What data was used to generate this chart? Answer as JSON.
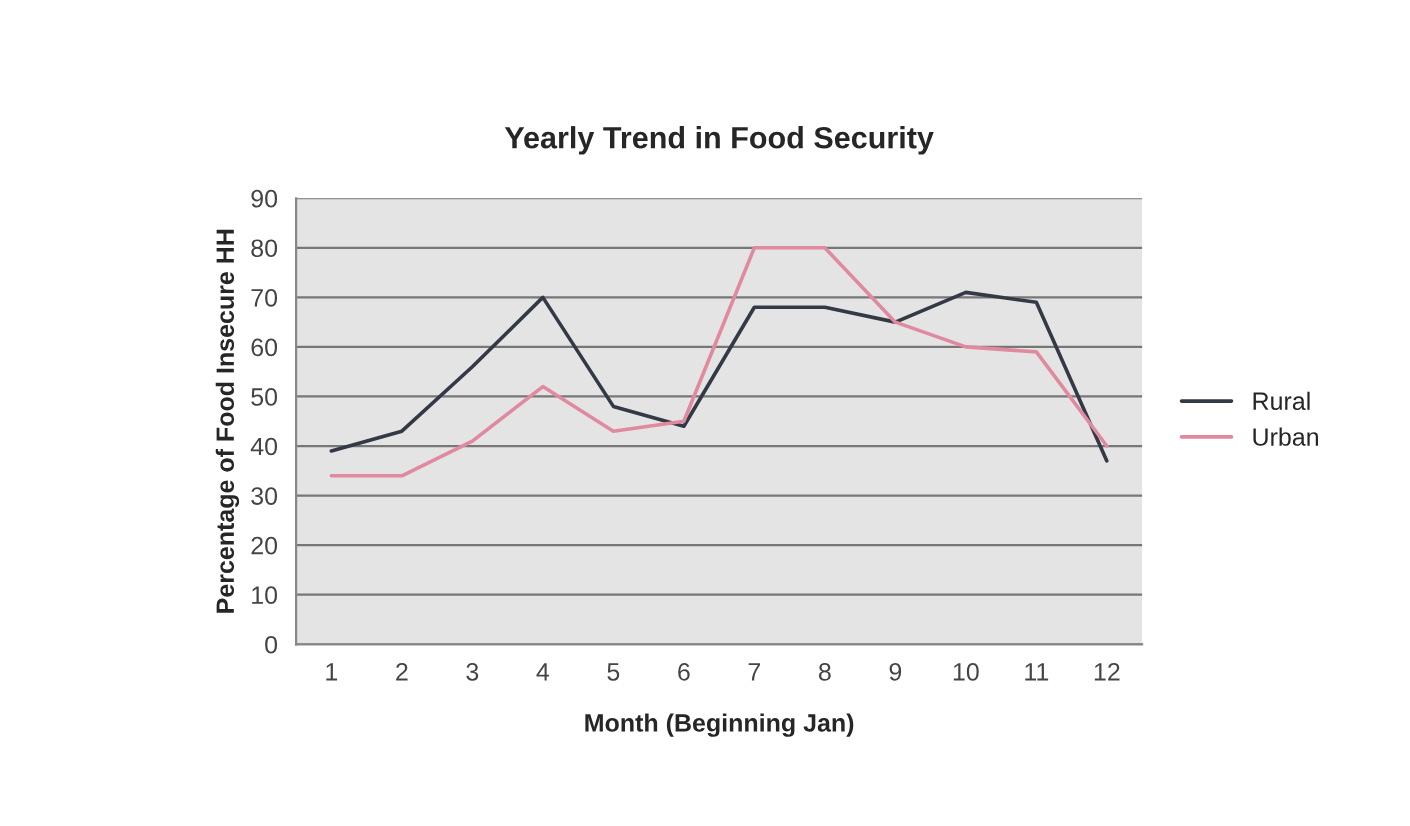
{
  "chart_data": {
    "type": "line",
    "title": "Yearly Trend in Food Security",
    "xlabel": "Month (Beginning Jan)",
    "ylabel": "Percentage of Food Insecure HH",
    "categories": [
      "1",
      "2",
      "3",
      "4",
      "5",
      "6",
      "7",
      "8",
      "9",
      "10",
      "11",
      "12"
    ],
    "series": [
      {
        "name": "Rural",
        "color": "#333a45",
        "values": [
          39,
          43,
          56,
          70,
          48,
          44,
          68,
          68,
          65,
          71,
          69,
          37
        ]
      },
      {
        "name": "Urban",
        "color": "#e08aa0",
        "values": [
          34,
          34,
          41,
          52,
          43,
          45,
          80,
          80,
          65,
          60,
          59,
          40
        ]
      }
    ],
    "ylim": [
      0,
      90
    ],
    "yticks": [
      0,
      10,
      20,
      30,
      40,
      50,
      60,
      70,
      80,
      90
    ],
    "grid": "y",
    "legend": "right",
    "marker": "none"
  }
}
